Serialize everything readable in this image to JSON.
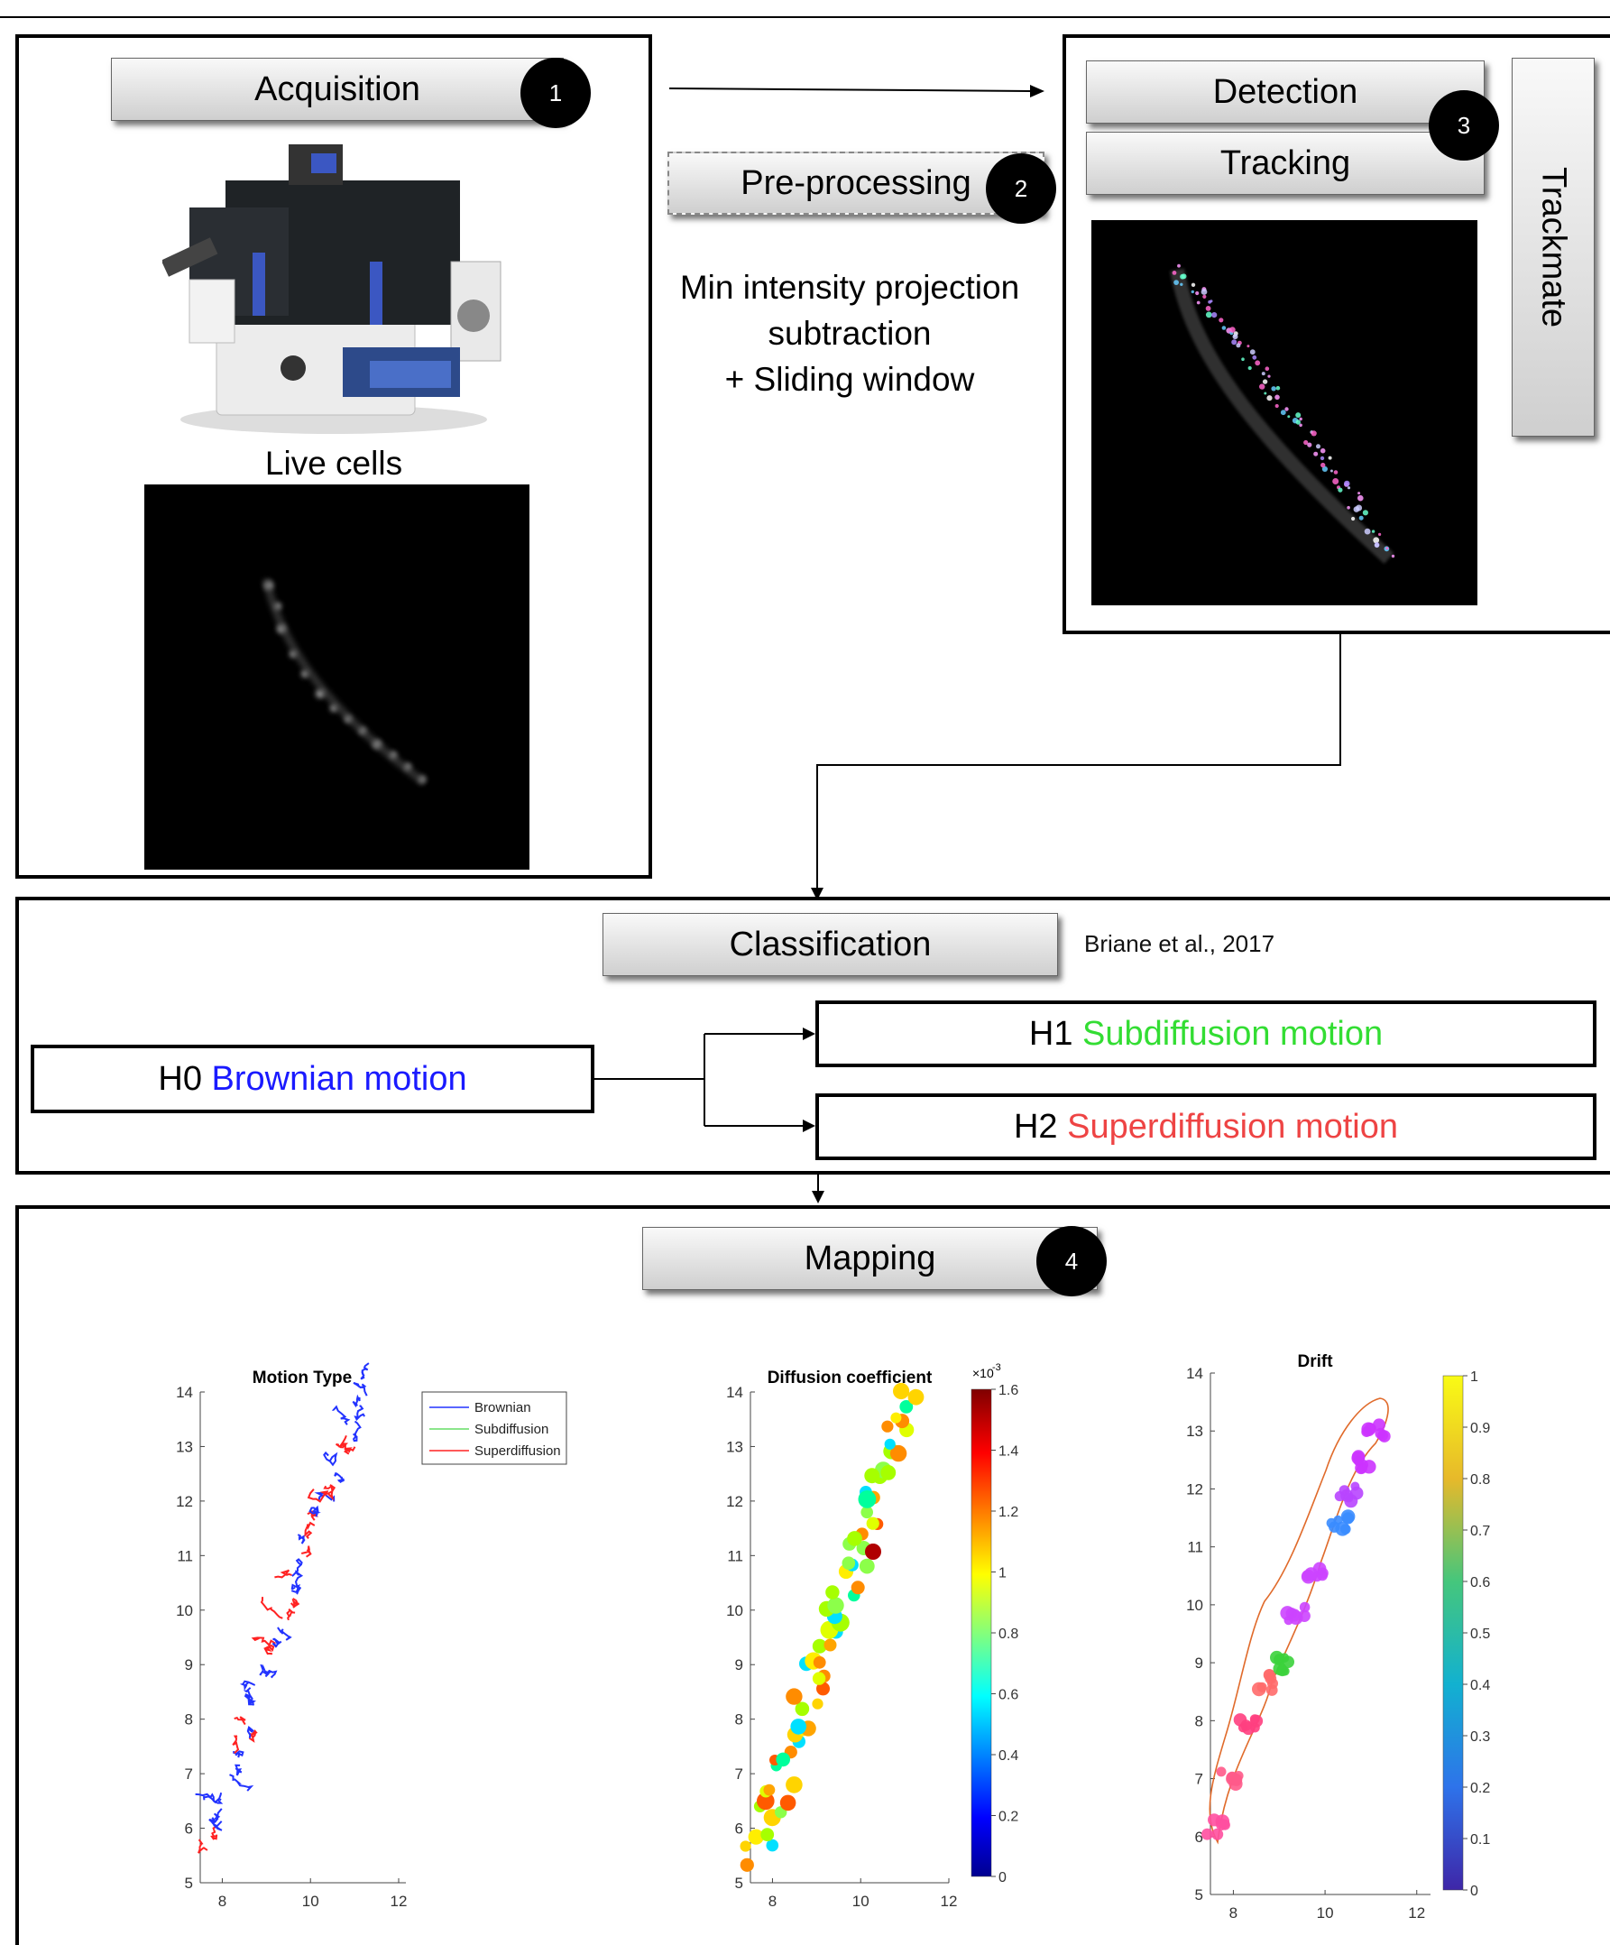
{
  "steps": {
    "acquisition": {
      "label": "Acquisition",
      "badge": "1"
    },
    "preprocessing": {
      "label": "Pre-processing",
      "badge": "2",
      "description": [
        "Min intensity projection",
        "subtraction",
        "+ Sliding window"
      ]
    },
    "detection": {
      "label": "Detection"
    },
    "tracking": {
      "label": "Tracking",
      "badge": "3"
    },
    "trackmate": {
      "label": "Trackmate"
    },
    "live_cells": {
      "label": "Live cells"
    },
    "classification": {
      "label": "Classification",
      "citation": "Briane et al., 2017"
    },
    "mapping": {
      "label": "Mapping",
      "badge": "4"
    }
  },
  "hypotheses": {
    "h0": {
      "prefix": "H0",
      "name": "Brownian motion",
      "color": "#1a1aff"
    },
    "h1": {
      "prefix": "H1",
      "name": "Subdiffusion motion",
      "color": "#33dd33"
    },
    "h2": {
      "prefix": "H2",
      "name": "Superdiffusion motion",
      "color": "#ee4444"
    }
  },
  "chart_data": [
    {
      "type": "line",
      "title": "Motion Type",
      "xlim": [
        7.5,
        12
      ],
      "ylim": [
        5,
        14
      ],
      "xticks": [
        "8",
        "10",
        "12"
      ],
      "yticks": [
        "5",
        "6",
        "7",
        "8",
        "9",
        "10",
        "11",
        "12",
        "13",
        "14"
      ],
      "legend": {
        "placement": "top-right",
        "entries": [
          "Brownian",
          "Subdiffusion",
          "Superdiffusion"
        ],
        "colors": [
          "#2233ff",
          "#66dd66",
          "#ff2222"
        ]
      },
      "series": [
        {
          "name": "Brownian"
        },
        {
          "name": "Subdiffusion"
        },
        {
          "name": "Superdiffusion"
        }
      ]
    },
    {
      "type": "scatter",
      "title": "Diffusion coefficient",
      "xlim": [
        7.5,
        12
      ],
      "ylim": [
        5,
        14
      ],
      "xticks": [
        "8",
        "10",
        "12"
      ],
      "yticks": [
        "5",
        "6",
        "7",
        "8",
        "9",
        "10",
        "11",
        "12",
        "13",
        "14"
      ],
      "colorbar": {
        "range": [
          0,
          1.6
        ],
        "ticks": [
          "0",
          "0.2",
          "0.4",
          "0.6",
          "0.8",
          "1",
          "1.2",
          "1.4",
          "1.6"
        ],
        "multiplier": "×10",
        "exponent": "-3"
      }
    },
    {
      "type": "scatter",
      "title": "Drift",
      "xlim": [
        7.5,
        12.3
      ],
      "ylim": [
        5,
        14
      ],
      "xticks": [
        "8",
        "10",
        "12"
      ],
      "yticks": [
        "5",
        "6",
        "7",
        "8",
        "9",
        "10",
        "11",
        "12",
        "13",
        "14"
      ],
      "colorbar": {
        "range": [
          0,
          1
        ],
        "ticks": [
          "0",
          "0.1",
          "0.2",
          "0.3",
          "0.4",
          "0.5",
          "0.6",
          "0.7",
          "0.8",
          "0.9",
          "1"
        ]
      }
    }
  ]
}
